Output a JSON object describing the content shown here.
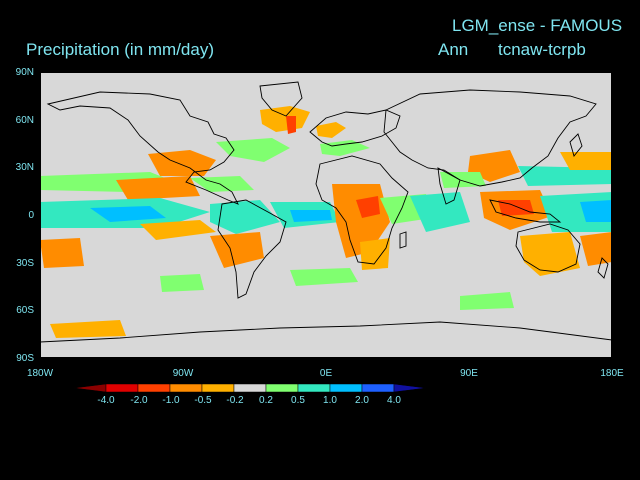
{
  "header": {
    "experiment": "LGM_ense - FAMOUS",
    "season": "Ann",
    "comparison": "tcnaw-tcrpb",
    "variable": "Precipitation (in mm/day)"
  },
  "axes": {
    "lat_labels": [
      "90N",
      "60N",
      "30N",
      "0",
      "30S",
      "60S",
      "90S"
    ],
    "lon_labels": [
      "180W",
      "90W",
      "0E",
      "90E",
      "180E"
    ]
  },
  "colorbar": {
    "labels": [
      "-4.0",
      "-2.0",
      "-1.0",
      "-0.5",
      "-0.2",
      "0.2",
      "0.5",
      "1.0",
      "2.0",
      "4.0"
    ],
    "colors": [
      "#8b0000",
      "#e00000",
      "#ff4000",
      "#ff8c00",
      "#ffb000",
      "#d8d8d8",
      "#80ff70",
      "#33e8c0",
      "#00bfff",
      "#1e60ff",
      "#1010a0"
    ]
  },
  "colors": {
    "background": "#000000",
    "text": "#7fe5f0",
    "map_neutral": "#d8d8d8",
    "coastline": "#000000"
  }
}
